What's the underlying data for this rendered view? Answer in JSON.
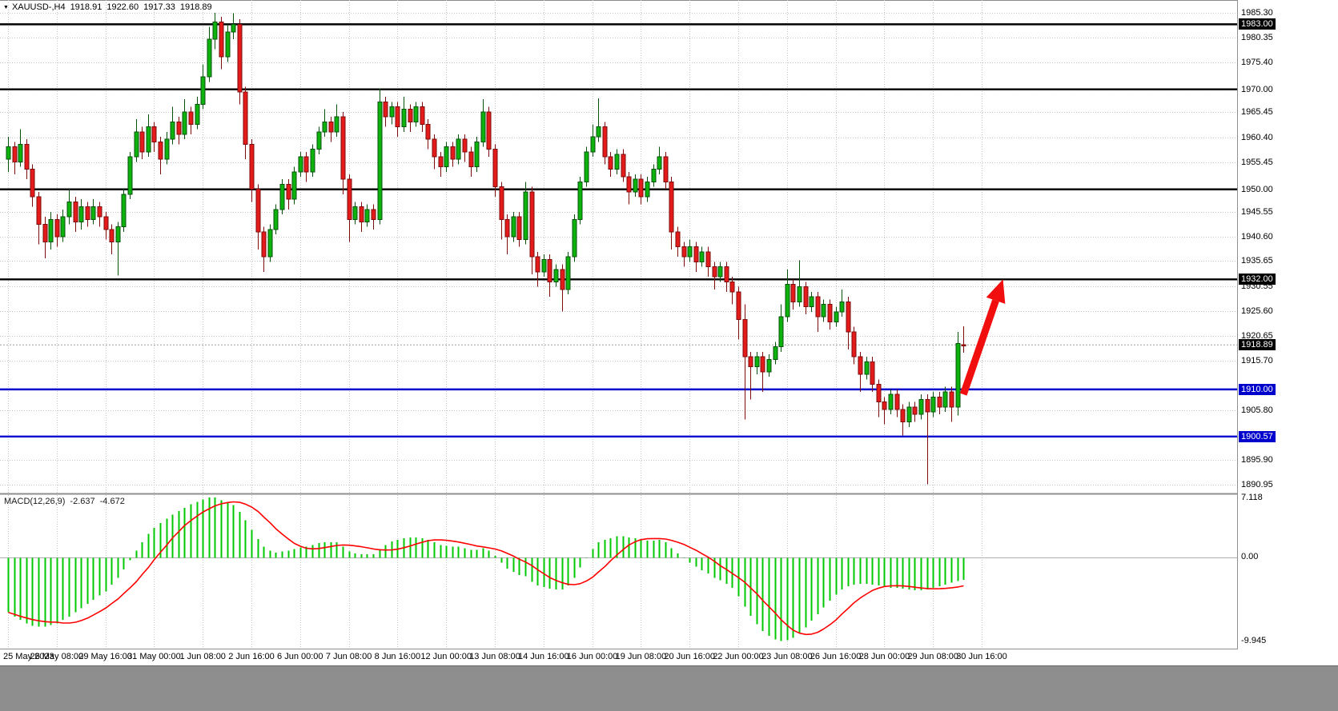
{
  "info_bar": {
    "collapse_icon": "▼",
    "symbol_period": "XAUUSD-,H4",
    "open": "1918.91",
    "high": "1922.60",
    "low": "1917.33",
    "close": "1918.89"
  },
  "indicator": {
    "name": "MACD(12,26,9)",
    "macd_value": "-2.637",
    "signal_value": "-4.672"
  },
  "price_axis": {
    "ticks": [
      "1985.30",
      "1980.35",
      "1975.40",
      "1970.00",
      "1965.45",
      "1960.40",
      "1955.45",
      "1950.00",
      "1945.55",
      "1940.60",
      "1935.65",
      "1930.55",
      "1925.60",
      "1920.65",
      "1915.70",
      "1905.80",
      "1895.90",
      "1890.95"
    ],
    "badges": [
      {
        "label": "1983.00",
        "style": "black"
      },
      {
        "label": "1932.00",
        "style": "black"
      },
      {
        "label": "1918.89",
        "style": "black"
      },
      {
        "label": "1910.00",
        "style": "blue"
      },
      {
        "label": "1900.57",
        "style": "blue"
      }
    ]
  },
  "macd_axis": {
    "top": "7.118",
    "zero": "0.00",
    "bottom": "-9.945"
  },
  "time_axis": {
    "bars_per_label": 8,
    "labels": [
      "25 May 2023",
      "26 May 08:00",
      "29 May 16:00",
      "31 May 00:00",
      "1 Jun 08:00",
      "2 Jun 16:00",
      "6 Jun 00:00",
      "7 Jun 08:00",
      "8 Jun 16:00",
      "12 Jun 00:00",
      "13 Jun 08:00",
      "14 Jun 16:00",
      "16 Jun 00:00",
      "19 Jun 08:00",
      "20 Jun 16:00",
      "22 Jun 00:00",
      "23 Jun 08:00",
      "26 Jun 16:00",
      "28 Jun 00:00",
      "29 Jun 08:00",
      "30 Jun 16:00"
    ]
  },
  "colors": {
    "bull": "#0db30d",
    "bull_border": "#06520b",
    "bear": "#e51a1a",
    "bear_border": "#7e0b0b",
    "histogram": "#00c800",
    "signal": "#ff0000",
    "hline_black": "#000000",
    "hline_blue": "#0000cc",
    "grid": "#c3c3c3",
    "current_line": "#9a9a9a",
    "arrow": "#f10e0e",
    "badge_black": "#000000",
    "badge_blue": "#0000cc"
  },
  "chart_data": {
    "type": "candlestick",
    "symbol": "XAUUSD-",
    "timeframe": "H4",
    "title": "XAUUSD-,H4",
    "ohlc_current": {
      "open": 1918.91,
      "high": 1922.6,
      "low": 1917.33,
      "close": 1918.89
    },
    "ylim": [
      1890.95,
      1985.3
    ],
    "current_price": 1918.89,
    "hlines": [
      {
        "price": 1983.0,
        "color": "black"
      },
      {
        "price": 1970.0,
        "color": "black"
      },
      {
        "price": 1950.0,
        "color": "black"
      },
      {
        "price": 1932.0,
        "color": "black"
      },
      {
        "price": 1910.0,
        "color": "blue"
      },
      {
        "price": 1900.57,
        "color": "blue"
      }
    ],
    "candles": [
      [
        1956.0,
        1960.5,
        1953.5,
        1958.5
      ],
      [
        1958.5,
        1959.5,
        1953.0,
        1955.5
      ],
      [
        1955.5,
        1962.0,
        1954.5,
        1959.0
      ],
      [
        1959.0,
        1960.0,
        1952.0,
        1954.0
      ],
      [
        1954.0,
        1955.0,
        1946.5,
        1948.5
      ],
      [
        1948.5,
        1949.5,
        1939.0,
        1943.0
      ],
      [
        1943.0,
        1944.5,
        1936.2,
        1939.5
      ],
      [
        1939.5,
        1945.5,
        1938.0,
        1944.0
      ],
      [
        1944.0,
        1945.0,
        1938.5,
        1940.5
      ],
      [
        1940.5,
        1946.0,
        1939.5,
        1944.5
      ],
      [
        1944.5,
        1950.0,
        1943.0,
        1947.5
      ],
      [
        1947.5,
        1948.5,
        1941.5,
        1943.5
      ],
      [
        1943.5,
        1948.0,
        1942.0,
        1946.5
      ],
      [
        1946.5,
        1947.5,
        1942.5,
        1944.0
      ],
      [
        1944.0,
        1948.0,
        1943.0,
        1946.5
      ],
      [
        1946.5,
        1947.5,
        1942.5,
        1944.5
      ],
      [
        1944.5,
        1945.5,
        1940.0,
        1942.0
      ],
      [
        1942.0,
        1943.0,
        1937.0,
        1939.5
      ],
      [
        1939.5,
        1943.5,
        1932.8,
        1942.5
      ],
      [
        1942.5,
        1950.0,
        1941.5,
        1949.0
      ],
      [
        1949.0,
        1957.5,
        1948.0,
        1956.5
      ],
      [
        1956.5,
        1964.0,
        1955.5,
        1961.5
      ],
      [
        1961.5,
        1962.5,
        1956.0,
        1957.5
      ],
      [
        1957.5,
        1965.0,
        1956.5,
        1962.5
      ],
      [
        1962.5,
        1963.5,
        1957.5,
        1959.5
      ],
      [
        1959.5,
        1960.5,
        1953.0,
        1956.0
      ],
      [
        1956.0,
        1961.5,
        1955.0,
        1960.0
      ],
      [
        1960.0,
        1966.5,
        1959.0,
        1963.5
      ],
      [
        1963.5,
        1964.5,
        1959.0,
        1961.0
      ],
      [
        1961.0,
        1968.0,
        1960.0,
        1965.5
      ],
      [
        1965.5,
        1966.5,
        1961.0,
        1963.0
      ],
      [
        1963.0,
        1968.5,
        1962.0,
        1967.0
      ],
      [
        1967.0,
        1975.0,
        1966.0,
        1972.5
      ],
      [
        1972.5,
        1982.5,
        1971.5,
        1980.0
      ],
      [
        1980.0,
        1985.3,
        1978.0,
        1983.5
      ],
      [
        1983.5,
        1984.5,
        1974.0,
        1976.5
      ],
      [
        1976.5,
        1983.0,
        1975.5,
        1981.5
      ],
      [
        1981.5,
        1985.2,
        1980.0,
        1983.0
      ],
      [
        1983.0,
        1984.0,
        1967.0,
        1969.5
      ],
      [
        1969.5,
        1970.5,
        1956.0,
        1959.0
      ],
      [
        1959.0,
        1960.0,
        1947.5,
        1950.0
      ],
      [
        1950.0,
        1951.0,
        1938.0,
        1941.5
      ],
      [
        1941.5,
        1942.5,
        1933.5,
        1936.5
      ],
      [
        1936.5,
        1943.0,
        1935.5,
        1942.0
      ],
      [
        1942.0,
        1947.0,
        1941.0,
        1946.0
      ],
      [
        1946.0,
        1952.0,
        1945.0,
        1951.0
      ],
      [
        1951.0,
        1952.0,
        1946.0,
        1948.0
      ],
      [
        1948.0,
        1954.5,
        1947.0,
        1953.5
      ],
      [
        1953.5,
        1957.5,
        1952.5,
        1956.5
      ],
      [
        1956.5,
        1957.5,
        1951.5,
        1953.5
      ],
      [
        1953.5,
        1959.0,
        1952.5,
        1958.0
      ],
      [
        1958.0,
        1962.5,
        1957.0,
        1961.5
      ],
      [
        1961.5,
        1966.0,
        1960.5,
        1963.5
      ],
      [
        1963.5,
        1964.5,
        1959.5,
        1961.5
      ],
      [
        1961.5,
        1967.0,
        1960.5,
        1964.5
      ],
      [
        1964.5,
        1965.5,
        1949.0,
        1952.0
      ],
      [
        1952.0,
        1953.0,
        1939.5,
        1944.0
      ],
      [
        1944.0,
        1947.5,
        1943.0,
        1946.5
      ],
      [
        1946.5,
        1947.5,
        1941.5,
        1943.5
      ],
      [
        1943.5,
        1947.0,
        1942.5,
        1946.0
      ],
      [
        1946.0,
        1947.0,
        1942.0,
        1944.0
      ],
      [
        1944.0,
        1970.2,
        1943.0,
        1967.5
      ],
      [
        1967.5,
        1968.5,
        1962.5,
        1964.5
      ],
      [
        1964.5,
        1967.5,
        1963.0,
        1966.5
      ],
      [
        1966.5,
        1967.5,
        1960.5,
        1962.5
      ],
      [
        1962.5,
        1968.5,
        1961.5,
        1966.0
      ],
      [
        1966.0,
        1967.0,
        1961.5,
        1963.5
      ],
      [
        1963.5,
        1967.5,
        1962.5,
        1966.5
      ],
      [
        1966.5,
        1967.5,
        1961.5,
        1963.0
      ],
      [
        1963.0,
        1964.0,
        1958.0,
        1960.0
      ],
      [
        1960.0,
        1961.0,
        1954.0,
        1956.5
      ],
      [
        1956.5,
        1957.5,
        1952.5,
        1954.5
      ],
      [
        1954.5,
        1959.5,
        1953.5,
        1958.5
      ],
      [
        1958.5,
        1959.5,
        1954.5,
        1956.0
      ],
      [
        1956.0,
        1961.0,
        1955.0,
        1960.0
      ],
      [
        1960.0,
        1961.0,
        1955.5,
        1957.5
      ],
      [
        1957.5,
        1958.5,
        1952.5,
        1954.5
      ],
      [
        1954.5,
        1960.5,
        1953.5,
        1959.5
      ],
      [
        1959.5,
        1968.0,
        1958.5,
        1965.5
      ],
      [
        1965.5,
        1966.5,
        1956.5,
        1958.0
      ],
      [
        1958.0,
        1959.0,
        1948.5,
        1950.5
      ],
      [
        1950.5,
        1951.5,
        1940.0,
        1944.0
      ],
      [
        1944.0,
        1945.0,
        1937.0,
        1940.5
      ],
      [
        1940.5,
        1945.5,
        1939.5,
        1944.5
      ],
      [
        1944.5,
        1945.5,
        1938.5,
        1940.0
      ],
      [
        1940.0,
        1951.5,
        1939.0,
        1949.5
      ],
      [
        1949.5,
        1950.5,
        1933.0,
        1936.5
      ],
      [
        1936.5,
        1937.5,
        1930.5,
        1933.5
      ],
      [
        1933.5,
        1937.0,
        1932.5,
        1936.0
      ],
      [
        1936.0,
        1937.0,
        1928.5,
        1931.5
      ],
      [
        1931.5,
        1935.0,
        1930.5,
        1934.0
      ],
      [
        1934.0,
        1935.0,
        1925.6,
        1930.0
      ],
      [
        1930.0,
        1937.5,
        1929.0,
        1936.5
      ],
      [
        1936.5,
        1945.0,
        1935.5,
        1944.0
      ],
      [
        1944.0,
        1952.5,
        1943.0,
        1951.5
      ],
      [
        1951.5,
        1958.5,
        1950.5,
        1957.5
      ],
      [
        1957.5,
        1963.0,
        1956.5,
        1960.5
      ],
      [
        1960.5,
        1968.2,
        1959.5,
        1962.5
      ],
      [
        1962.5,
        1963.5,
        1955.0,
        1956.5
      ],
      [
        1956.5,
        1957.5,
        1952.5,
        1954.0
      ],
      [
        1954.0,
        1958.0,
        1953.0,
        1957.0
      ],
      [
        1957.0,
        1958.0,
        1951.5,
        1952.5
      ],
      [
        1952.5,
        1953.5,
        1947.0,
        1949.5
      ],
      [
        1949.5,
        1953.0,
        1948.5,
        1952.0
      ],
      [
        1952.0,
        1953.0,
        1947.0,
        1948.5
      ],
      [
        1948.5,
        1952.5,
        1947.5,
        1951.5
      ],
      [
        1951.5,
        1955.0,
        1950.5,
        1954.0
      ],
      [
        1954.0,
        1958.5,
        1953.0,
        1956.5
      ],
      [
        1956.5,
        1957.5,
        1950.0,
        1951.5
      ],
      [
        1951.5,
        1952.5,
        1938.0,
        1941.5
      ],
      [
        1941.5,
        1942.5,
        1936.5,
        1938.5
      ],
      [
        1938.5,
        1939.5,
        1934.5,
        1936.5
      ],
      [
        1936.5,
        1940.0,
        1935.5,
        1938.5
      ],
      [
        1938.5,
        1939.5,
        1933.5,
        1935.5
      ],
      [
        1935.5,
        1938.5,
        1934.5,
        1937.5
      ],
      [
        1937.5,
        1938.5,
        1932.5,
        1934.5
      ],
      [
        1934.5,
        1935.5,
        1930.0,
        1932.5
      ],
      [
        1932.5,
        1935.5,
        1931.5,
        1934.5
      ],
      [
        1934.5,
        1935.5,
        1929.5,
        1931.5
      ],
      [
        1931.5,
        1932.5,
        1927.0,
        1929.5
      ],
      [
        1929.5,
        1930.5,
        1920.0,
        1924.0
      ],
      [
        1924.0,
        1927.0,
        1904.0,
        1916.5
      ],
      [
        1916.5,
        1917.5,
        1908.0,
        1914.5
      ],
      [
        1914.5,
        1917.5,
        1913.0,
        1916.5
      ],
      [
        1916.5,
        1917.5,
        1909.5,
        1913.5
      ],
      [
        1913.5,
        1917.0,
        1912.5,
        1916.0
      ],
      [
        1916.0,
        1919.5,
        1915.0,
        1918.5
      ],
      [
        1918.5,
        1927.0,
        1917.5,
        1924.5
      ],
      [
        1924.5,
        1934.0,
        1923.5,
        1931.0
      ],
      [
        1931.0,
        1932.0,
        1926.0,
        1927.5
      ],
      [
        1927.5,
        1935.8,
        1926.5,
        1930.5
      ],
      [
        1930.5,
        1931.5,
        1925.0,
        1926.5
      ],
      [
        1926.5,
        1929.5,
        1925.5,
        1928.5
      ],
      [
        1928.5,
        1929.5,
        1921.5,
        1924.5
      ],
      [
        1924.5,
        1928.0,
        1923.5,
        1927.0
      ],
      [
        1927.0,
        1928.0,
        1922.0,
        1923.5
      ],
      [
        1923.5,
        1926.5,
        1922.5,
        1925.5
      ],
      [
        1925.5,
        1930.0,
        1924.5,
        1927.5
      ],
      [
        1927.5,
        1928.5,
        1918.0,
        1921.5
      ],
      [
        1921.5,
        1922.5,
        1915.0,
        1916.5
      ],
      [
        1916.5,
        1917.5,
        1909.5,
        1913.0
      ],
      [
        1913.0,
        1916.5,
        1912.0,
        1915.5
      ],
      [
        1915.5,
        1916.5,
        1909.5,
        1911.0
      ],
      [
        1911.0,
        1912.0,
        1904.5,
        1907.5
      ],
      [
        1907.5,
        1908.5,
        1903.0,
        1906.0
      ],
      [
        1906.0,
        1910.0,
        1905.0,
        1909.0
      ],
      [
        1909.0,
        1910.0,
        1904.5,
        1906.0
      ],
      [
        1906.0,
        1907.0,
        1900.8,
        1903.5
      ],
      [
        1903.5,
        1907.5,
        1902.5,
        1906.5
      ],
      [
        1906.5,
        1907.5,
        1903.5,
        1905.0
      ],
      [
        1905.0,
        1909.0,
        1904.0,
        1908.0
      ],
      [
        1908.0,
        1909.0,
        1891.0,
        1905.5
      ],
      [
        1905.5,
        1909.5,
        1904.5,
        1908.5
      ],
      [
        1908.5,
        1909.5,
        1905.0,
        1906.5
      ],
      [
        1906.5,
        1910.5,
        1905.5,
        1909.5
      ],
      [
        1909.5,
        1910.5,
        1903.5,
        1906.5
      ],
      [
        1906.5,
        1921.5,
        1904.8,
        1919.2
      ],
      [
        1918.91,
        1922.6,
        1917.33,
        1918.89
      ]
    ],
    "macd": {
      "params": [
        12,
        26,
        9
      ],
      "ylim": [
        -9.945,
        7.118
      ],
      "signal_sma_window": 9,
      "histogram": [
        -6.5,
        -7.0,
        -7.4,
        -7.8,
        -8.1,
        -8.2,
        -8.2,
        -8.0,
        -7.8,
        -7.4,
        -7.0,
        -6.5,
        -6.0,
        -5.5,
        -5.0,
        -4.5,
        -4.0,
        -3.2,
        -2.4,
        -1.4,
        -0.3,
        0.8,
        1.8,
        2.8,
        3.5,
        4.1,
        4.6,
        5.1,
        5.5,
        5.9,
        6.3,
        6.6,
        6.9,
        7.1,
        7.1,
        6.8,
        6.5,
        6.2,
        5.4,
        4.4,
        3.3,
        2.2,
        1.3,
        0.8,
        0.6,
        0.7,
        0.8,
        1.0,
        1.2,
        1.3,
        1.5,
        1.7,
        1.8,
        1.8,
        1.8,
        1.3,
        0.7,
        0.5,
        0.4,
        0.4,
        0.4,
        1.0,
        1.5,
        1.9,
        2.1,
        2.3,
        2.4,
        2.4,
        2.3,
        2.1,
        1.8,
        1.5,
        1.4,
        1.3,
        1.3,
        1.1,
        0.9,
        0.9,
        1.1,
        0.8,
        0.2,
        -0.6,
        -1.3,
        -1.7,
        -2.1,
        -2.2,
        -2.9,
        -3.3,
        -3.5,
        -3.7,
        -3.8,
        -3.8,
        -3.3,
        -2.4,
        -1.2,
        0.0,
        1.0,
        1.8,
        2.1,
        2.3,
        2.5,
        2.5,
        2.4,
        2.3,
        2.1,
        2.0,
        2.0,
        2.1,
        1.8,
        1.1,
        0.5,
        -0.1,
        -0.6,
        -1.1,
        -1.5,
        -1.9,
        -2.4,
        -2.7,
        -3.1,
        -3.6,
        -4.6,
        -5.8,
        -6.9,
        -7.9,
        -8.7,
        -9.3,
        -9.7,
        -9.9,
        -9.8,
        -9.5,
        -9.0,
        -8.3,
        -7.5,
        -6.7,
        -5.9,
        -5.1,
        -4.4,
        -3.8,
        -3.4,
        -3.2,
        -3.1,
        -3.1,
        -3.2,
        -3.3,
        -3.5,
        -3.6,
        -3.6,
        -3.7,
        -3.8,
        -3.9,
        -3.9,
        -3.8,
        -3.6,
        -3.4,
        -3.2,
        -3.0,
        -2.8,
        -2.637
      ]
    },
    "arrow_annotation": {
      "from_bar": 157,
      "from_price": 1909.0,
      "to_bar": 163.5,
      "to_price": 1932.0
    }
  }
}
